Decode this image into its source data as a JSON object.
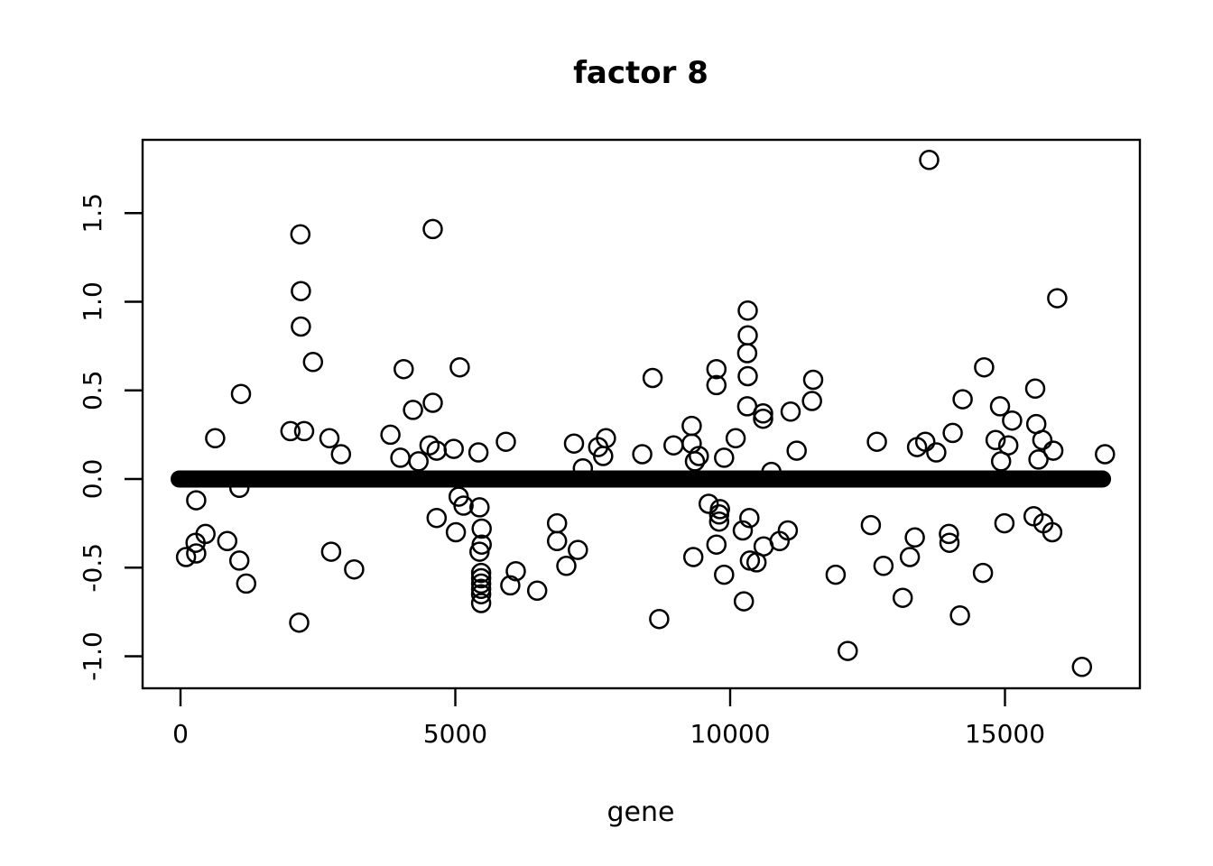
{
  "chart": {
    "title": "factor 8",
    "x_axis_label": "gene"
  },
  "chart_data": {
    "type": "scatter",
    "title": "factor 8",
    "xlabel": "gene",
    "ylabel": "",
    "xlim": [
      -690,
      17460
    ],
    "ylim": [
      -1.18,
      1.92
    ],
    "grid": false,
    "legend": null,
    "marker": "open-circle",
    "color": "#000000",
    "background": "#ffffff",
    "x_ticks": [
      0,
      5000,
      10000,
      15000
    ],
    "x_tick_labels": [
      "0",
      "5000",
      "10000",
      "15000"
    ],
    "y_ticks": [
      1.5,
      1.0,
      0.5,
      0.0,
      -0.5,
      -1.0
    ],
    "y_tick_labels": [
      "1.5",
      "1.0",
      "0.5",
      "0.0",
      "-0.5",
      "-1.0"
    ],
    "zero_band": {
      "y": 0,
      "x_start": 0,
      "x_end": 16750,
      "description": "dense run of overlapping points at y = 0 rendered as a thick black bar"
    },
    "points": [
      [
        2180,
        1.38
      ],
      [
        4590,
        1.41
      ],
      [
        2190,
        1.06
      ],
      [
        2190,
        0.86
      ],
      [
        2410,
        0.66
      ],
      [
        4060,
        0.62
      ],
      [
        5080,
        0.63
      ],
      [
        1100,
        0.48
      ],
      [
        4230,
        0.39
      ],
      [
        4590,
        0.43
      ],
      [
        13620,
        1.8
      ],
      [
        15950,
        1.02
      ],
      [
        14620,
        0.63
      ],
      [
        15550,
        0.51
      ],
      [
        14230,
        0.45
      ],
      [
        14910,
        0.41
      ],
      [
        10320,
        0.95
      ],
      [
        10320,
        0.81
      ],
      [
        10310,
        0.71
      ],
      [
        9750,
        0.62
      ],
      [
        9750,
        0.53
      ],
      [
        10320,
        0.58
      ],
      [
        8590,
        0.57
      ],
      [
        10310,
        0.41
      ],
      [
        10600,
        0.37
      ],
      [
        10600,
        0.34
      ],
      [
        11100,
        0.38
      ],
      [
        11510,
        0.56
      ],
      [
        11490,
        0.44
      ],
      [
        630,
        0.23
      ],
      [
        2000,
        0.27
      ],
      [
        2250,
        0.27
      ],
      [
        2710,
        0.23
      ],
      [
        2920,
        0.14
      ],
      [
        3820,
        0.25
      ],
      [
        4000,
        0.12
      ],
      [
        4330,
        0.1
      ],
      [
        4530,
        0.19
      ],
      [
        4660,
        0.16
      ],
      [
        4970,
        0.17
      ],
      [
        5420,
        0.15
      ],
      [
        5920,
        0.21
      ],
      [
        7160,
        0.2
      ],
      [
        7320,
        0.06
      ],
      [
        7600,
        0.18
      ],
      [
        7690,
        0.13
      ],
      [
        7740,
        0.23
      ],
      [
        8400,
        0.14
      ],
      [
        8970,
        0.19
      ],
      [
        9300,
        0.3
      ],
      [
        9300,
        0.2
      ],
      [
        9360,
        0.1
      ],
      [
        9430,
        0.13
      ],
      [
        9890,
        0.12
      ],
      [
        10100,
        0.23
      ],
      [
        10750,
        0.04
      ],
      [
        11210,
        0.16
      ],
      [
        12670,
        0.21
      ],
      [
        13400,
        0.18
      ],
      [
        13550,
        0.21
      ],
      [
        13750,
        0.15
      ],
      [
        14050,
        0.26
      ],
      [
        14830,
        0.22
      ],
      [
        15060,
        0.19
      ],
      [
        14930,
        0.1
      ],
      [
        15680,
        0.22
      ],
      [
        15880,
        0.16
      ],
      [
        15610,
        0.11
      ],
      [
        16820,
        0.14
      ],
      [
        15130,
        0.33
      ],
      [
        15570,
        0.31
      ],
      [
        285,
        -0.12
      ],
      [
        100,
        -0.44
      ],
      [
        275,
        -0.36
      ],
      [
        285,
        -0.42
      ],
      [
        455,
        -0.31
      ],
      [
        850,
        -0.35
      ],
      [
        1070,
        -0.46
      ],
      [
        1195,
        -0.59
      ],
      [
        1070,
        -0.05
      ],
      [
        2160,
        -0.81
      ],
      [
        2740,
        -0.41
      ],
      [
        3160,
        -0.51
      ],
      [
        4660,
        -0.22
      ],
      [
        5010,
        -0.3
      ],
      [
        5060,
        -0.1
      ],
      [
        5150,
        -0.15
      ],
      [
        5440,
        -0.16
      ],
      [
        5480,
        -0.28
      ],
      [
        5480,
        -0.37
      ],
      [
        5440,
        -0.41
      ],
      [
        5470,
        -0.53
      ],
      [
        5470,
        -0.56
      ],
      [
        5470,
        -0.59
      ],
      [
        5470,
        -0.62
      ],
      [
        5470,
        -0.65
      ],
      [
        5470,
        -0.7
      ],
      [
        6100,
        -0.52
      ],
      [
        6000,
        -0.6
      ],
      [
        6490,
        -0.63
      ],
      [
        6850,
        -0.25
      ],
      [
        6850,
        -0.35
      ],
      [
        7230,
        -0.4
      ],
      [
        7020,
        -0.49
      ],
      [
        8710,
        -0.79
      ],
      [
        9330,
        -0.44
      ],
      [
        9610,
        -0.14
      ],
      [
        9750,
        -0.37
      ],
      [
        9800,
        -0.2
      ],
      [
        9800,
        -0.24
      ],
      [
        9815,
        -0.17
      ],
      [
        9890,
        -0.54
      ],
      [
        10230,
        -0.29
      ],
      [
        10250,
        -0.69
      ],
      [
        10350,
        -0.22
      ],
      [
        10360,
        -0.46
      ],
      [
        10480,
        -0.47
      ],
      [
        10610,
        -0.38
      ],
      [
        10900,
        -0.35
      ],
      [
        11050,
        -0.29
      ],
      [
        11920,
        -0.54
      ],
      [
        12140,
        -0.97
      ],
      [
        12560,
        -0.26
      ],
      [
        12790,
        -0.49
      ],
      [
        13270,
        -0.44
      ],
      [
        13360,
        -0.33
      ],
      [
        13140,
        -0.67
      ],
      [
        13980,
        -0.31
      ],
      [
        13990,
        -0.36
      ],
      [
        14180,
        -0.77
      ],
      [
        14600,
        -0.53
      ],
      [
        14990,
        -0.25
      ],
      [
        15520,
        -0.21
      ],
      [
        15700,
        -0.25
      ],
      [
        15860,
        -0.3
      ],
      [
        16400,
        -1.06
      ]
    ]
  }
}
